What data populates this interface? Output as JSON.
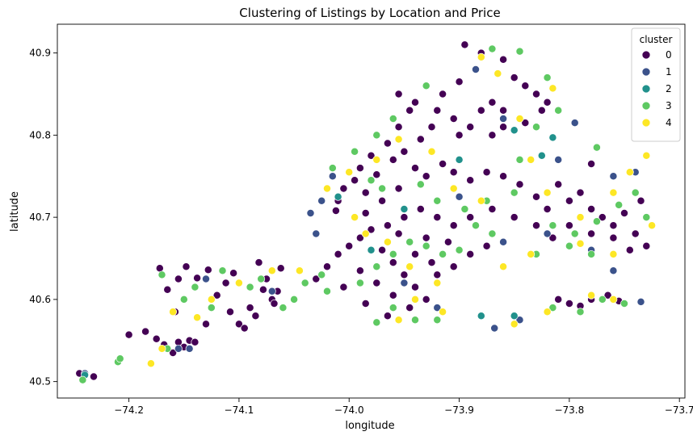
{
  "chart_data": {
    "type": "scatter",
    "title": "Clustering of Listings by Location and Price",
    "xlabel": "longitude",
    "ylabel": "latitude",
    "xlim": [
      -74.265,
      -73.695
    ],
    "ylim": [
      40.48,
      40.935
    ],
    "xticks": [
      {
        "v": -74.2,
        "label": "−74.2"
      },
      {
        "v": -74.1,
        "label": "−74.1"
      },
      {
        "v": -74.0,
        "label": "−74.0"
      },
      {
        "v": -73.9,
        "label": "−73.9"
      },
      {
        "v": -73.8,
        "label": "−73.8"
      },
      {
        "v": -73.7,
        "label": "−73.7"
      }
    ],
    "yticks": [
      {
        "v": 40.5,
        "label": "40.5"
      },
      {
        "v": 40.6,
        "label": "40.6"
      },
      {
        "v": 40.7,
        "label": "40.7"
      },
      {
        "v": 40.8,
        "label": "40.8"
      },
      {
        "v": 40.9,
        "label": "40.9"
      }
    ],
    "grid": false,
    "legend": {
      "title": "cluster",
      "placement": "top-right",
      "entries": [
        {
          "label": "0",
          "color": "#440154"
        },
        {
          "label": "1",
          "color": "#3b528b"
        },
        {
          "label": "2",
          "color": "#21918c"
        },
        {
          "label": "3",
          "color": "#5ec962"
        },
        {
          "label": "4",
          "color": "#fde725"
        }
      ]
    },
    "series": [
      {
        "name": "0",
        "color": "#440154",
        "points": [
          [
            -74.245,
            40.51
          ],
          [
            -74.232,
            40.506
          ],
          [
            -74.2,
            40.557
          ],
          [
            -74.185,
            40.561
          ],
          [
            -74.175,
            40.552
          ],
          [
            -74.168,
            40.545
          ],
          [
            -74.16,
            40.535
          ],
          [
            -74.155,
            40.548
          ],
          [
            -74.15,
            40.542
          ],
          [
            -74.145,
            40.55
          ],
          [
            -74.14,
            40.548
          ],
          [
            -74.172,
            40.638
          ],
          [
            -74.165,
            40.612
          ],
          [
            -74.158,
            40.585
          ],
          [
            -74.155,
            40.625
          ],
          [
            -74.148,
            40.64
          ],
          [
            -74.138,
            40.626
          ],
          [
            -74.128,
            40.636
          ],
          [
            -74.12,
            40.605
          ],
          [
            -74.112,
            40.62
          ],
          [
            -74.105,
            40.632
          ],
          [
            -74.1,
            40.57
          ],
          [
            -74.095,
            40.565
          ],
          [
            -74.09,
            40.59
          ],
          [
            -74.082,
            40.645
          ],
          [
            -74.078,
            40.612
          ],
          [
            -74.075,
            40.625
          ],
          [
            -74.07,
            40.6
          ],
          [
            -74.068,
            40.595
          ],
          [
            -74.065,
            40.61
          ],
          [
            -74.062,
            40.638
          ],
          [
            -74.085,
            40.58
          ],
          [
            -74.108,
            40.585
          ],
          [
            -74.13,
            40.57
          ],
          [
            -73.88,
            40.9
          ],
          [
            -73.895,
            40.91
          ],
          [
            -73.86,
            40.892
          ],
          [
            -73.85,
            40.87
          ],
          [
            -73.84,
            40.86
          ],
          [
            -73.83,
            40.85
          ],
          [
            -73.9,
            40.865
          ],
          [
            -73.915,
            40.85
          ],
          [
            -73.87,
            40.84
          ],
          [
            -73.88,
            40.83
          ],
          [
            -73.905,
            40.82
          ],
          [
            -73.925,
            40.81
          ],
          [
            -73.945,
            40.83
          ],
          [
            -73.955,
            40.81
          ],
          [
            -73.935,
            40.795
          ],
          [
            -73.965,
            40.79
          ],
          [
            -73.98,
            40.775
          ],
          [
            -73.99,
            40.76
          ],
          [
            -73.995,
            40.745
          ],
          [
            -74.005,
            40.735
          ],
          [
            -74.01,
            40.72
          ],
          [
            -74.012,
            40.708
          ],
          [
            -73.975,
            40.752
          ],
          [
            -73.985,
            40.73
          ],
          [
            -73.96,
            40.77
          ],
          [
            -73.95,
            40.78
          ],
          [
            -73.94,
            40.76
          ],
          [
            -73.93,
            40.75
          ],
          [
            -73.915,
            40.765
          ],
          [
            -73.905,
            40.755
          ],
          [
            -73.89,
            40.745
          ],
          [
            -73.875,
            40.755
          ],
          [
            -73.86,
            40.75
          ],
          [
            -73.845,
            40.74
          ],
          [
            -73.83,
            40.725
          ],
          [
            -73.82,
            40.71
          ],
          [
            -73.81,
            40.74
          ],
          [
            -73.8,
            40.72
          ],
          [
            -73.79,
            40.73
          ],
          [
            -73.78,
            40.71
          ],
          [
            -73.77,
            40.7
          ],
          [
            -73.76,
            40.69
          ],
          [
            -73.75,
            40.705
          ],
          [
            -73.74,
            40.68
          ],
          [
            -73.73,
            40.665
          ],
          [
            -73.735,
            40.72
          ],
          [
            -73.745,
            40.66
          ],
          [
            -73.76,
            40.675
          ],
          [
            -73.78,
            40.68
          ],
          [
            -73.8,
            40.69
          ],
          [
            -73.815,
            40.675
          ],
          [
            -73.83,
            40.69
          ],
          [
            -73.85,
            40.7
          ],
          [
            -73.87,
            40.71
          ],
          [
            -73.89,
            40.7
          ],
          [
            -73.905,
            40.69
          ],
          [
            -73.92,
            40.7
          ],
          [
            -73.935,
            40.71
          ],
          [
            -73.95,
            40.7
          ],
          [
            -73.965,
            40.69
          ],
          [
            -73.98,
            40.685
          ],
          [
            -73.99,
            40.675
          ],
          [
            -74.0,
            40.665
          ],
          [
            -74.01,
            40.655
          ],
          [
            -74.02,
            40.64
          ],
          [
            -74.03,
            40.625
          ],
          [
            -73.97,
            40.66
          ],
          [
            -73.96,
            40.645
          ],
          [
            -73.95,
            40.63
          ],
          [
            -73.94,
            40.615
          ],
          [
            -73.93,
            40.6
          ],
          [
            -73.945,
            40.59
          ],
          [
            -73.96,
            40.605
          ],
          [
            -73.975,
            40.62
          ],
          [
            -73.99,
            40.635
          ],
          [
            -74.005,
            40.615
          ],
          [
            -73.985,
            40.595
          ],
          [
            -73.965,
            40.58
          ],
          [
            -73.92,
            40.63
          ],
          [
            -73.905,
            40.64
          ],
          [
            -73.89,
            40.655
          ],
          [
            -73.875,
            40.665
          ],
          [
            -73.91,
            40.67
          ],
          [
            -73.93,
            40.675
          ],
          [
            -73.955,
            40.68
          ],
          [
            -73.94,
            40.655
          ],
          [
            -73.925,
            40.645
          ],
          [
            -73.985,
            40.705
          ],
          [
            -73.97,
            40.72
          ],
          [
            -73.955,
            40.735
          ],
          [
            -73.86,
            40.81
          ],
          [
            -73.84,
            40.815
          ],
          [
            -73.825,
            40.83
          ],
          [
            -73.86,
            40.83
          ],
          [
            -73.82,
            40.84
          ],
          [
            -73.81,
            40.6
          ],
          [
            -73.8,
            40.595
          ],
          [
            -73.78,
            40.6
          ],
          [
            -73.765,
            40.605
          ],
          [
            -73.755,
            40.598
          ],
          [
            -73.79,
            40.592
          ],
          [
            -73.955,
            40.85
          ],
          [
            -73.94,
            40.84
          ],
          [
            -73.92,
            40.83
          ],
          [
            -73.9,
            40.8
          ],
          [
            -73.89,
            40.81
          ],
          [
            -73.87,
            40.8
          ],
          [
            -73.78,
            40.765
          ]
        ]
      },
      {
        "name": "1",
        "color": "#3b528b",
        "points": [
          [
            -74.24,
            40.51
          ],
          [
            -74.145,
            40.54
          ],
          [
            -74.155,
            40.54
          ],
          [
            -74.13,
            40.625
          ],
          [
            -74.07,
            40.61
          ],
          [
            -73.86,
            40.82
          ],
          [
            -73.795,
            40.815
          ],
          [
            -73.81,
            40.77
          ],
          [
            -73.76,
            40.75
          ],
          [
            -73.78,
            40.66
          ],
          [
            -73.82,
            40.68
          ],
          [
            -74.015,
            40.75
          ],
          [
            -74.025,
            40.72
          ],
          [
            -74.03,
            40.68
          ],
          [
            -74.035,
            40.705
          ],
          [
            -73.92,
            40.59
          ],
          [
            -73.868,
            40.565
          ],
          [
            -73.845,
            40.575
          ],
          [
            -73.735,
            40.597
          ],
          [
            -73.9,
            40.725
          ],
          [
            -73.86,
            40.67
          ],
          [
            -73.95,
            40.62
          ],
          [
            -73.74,
            40.755
          ],
          [
            -73.885,
            40.88
          ],
          [
            -73.76,
            40.635
          ]
        ]
      },
      {
        "name": "2",
        "color": "#21918c",
        "points": [
          [
            -74.24,
            40.508
          ],
          [
            -73.85,
            40.58
          ],
          [
            -73.815,
            40.797
          ],
          [
            -73.825,
            40.775
          ],
          [
            -73.95,
            40.71
          ],
          [
            -74.01,
            40.725
          ],
          [
            -73.98,
            40.66
          ],
          [
            -73.85,
            40.806
          ],
          [
            -73.9,
            40.77
          ],
          [
            -73.88,
            40.58
          ]
        ]
      },
      {
        "name": "3",
        "color": "#5ec962",
        "points": [
          [
            -74.242,
            40.502
          ],
          [
            -74.21,
            40.524
          ],
          [
            -74.208,
            40.528
          ],
          [
            -74.17,
            40.63
          ],
          [
            -74.165,
            40.54
          ],
          [
            -74.15,
            40.6
          ],
          [
            -74.14,
            40.615
          ],
          [
            -74.125,
            40.59
          ],
          [
            -74.115,
            40.635
          ],
          [
            -74.09,
            40.615
          ],
          [
            -74.08,
            40.625
          ],
          [
            -74.06,
            40.59
          ],
          [
            -74.05,
            40.6
          ],
          [
            -74.04,
            40.62
          ],
          [
            -74.025,
            40.63
          ],
          [
            -74.02,
            40.61
          ],
          [
            -73.87,
            40.905
          ],
          [
            -73.845,
            40.902
          ],
          [
            -73.82,
            40.87
          ],
          [
            -73.81,
            40.83
          ],
          [
            -73.775,
            40.785
          ],
          [
            -73.93,
            40.86
          ],
          [
            -73.96,
            40.82
          ],
          [
            -73.975,
            40.8
          ],
          [
            -73.995,
            40.78
          ],
          [
            -74.015,
            40.76
          ],
          [
            -73.98,
            40.745
          ],
          [
            -73.97,
            40.735
          ],
          [
            -73.935,
            40.74
          ],
          [
            -73.92,
            40.72
          ],
          [
            -73.895,
            40.71
          ],
          [
            -73.875,
            40.72
          ],
          [
            -73.85,
            40.73
          ],
          [
            -73.815,
            40.69
          ],
          [
            -73.795,
            40.68
          ],
          [
            -73.775,
            40.695
          ],
          [
            -73.755,
            40.715
          ],
          [
            -73.74,
            40.73
          ],
          [
            -73.73,
            40.7
          ],
          [
            -73.78,
            40.655
          ],
          [
            -73.8,
            40.665
          ],
          [
            -73.83,
            40.655
          ],
          [
            -73.87,
            40.68
          ],
          [
            -73.885,
            40.69
          ],
          [
            -73.9,
            40.66
          ],
          [
            -73.915,
            40.655
          ],
          [
            -73.93,
            40.665
          ],
          [
            -73.945,
            40.67
          ],
          [
            -73.96,
            40.655
          ],
          [
            -73.975,
            40.64
          ],
          [
            -73.99,
            40.62
          ],
          [
            -73.96,
            40.59
          ],
          [
            -73.94,
            40.575
          ],
          [
            -73.975,
            40.572
          ],
          [
            -73.92,
            40.575
          ],
          [
            -73.815,
            40.59
          ],
          [
            -73.79,
            40.585
          ],
          [
            -73.77,
            40.6
          ],
          [
            -73.75,
            40.595
          ],
          [
            -73.845,
            40.77
          ],
          [
            -73.83,
            40.81
          ]
        ]
      },
      {
        "name": "4",
        "color": "#fde725",
        "points": [
          [
            -74.18,
            40.522
          ],
          [
            -74.17,
            40.54
          ],
          [
            -74.16,
            40.585
          ],
          [
            -74.138,
            40.578
          ],
          [
            -74.125,
            40.6
          ],
          [
            -74.1,
            40.62
          ],
          [
            -74.07,
            40.635
          ],
          [
            -74.045,
            40.635
          ],
          [
            -73.88,
            40.895
          ],
          [
            -73.865,
            40.875
          ],
          [
            -73.815,
            40.857
          ],
          [
            -73.845,
            40.82
          ],
          [
            -73.835,
            40.77
          ],
          [
            -73.82,
            40.73
          ],
          [
            -73.79,
            40.7
          ],
          [
            -73.76,
            40.73
          ],
          [
            -73.745,
            40.755
          ],
          [
            -73.73,
            40.775
          ],
          [
            -73.725,
            40.69
          ],
          [
            -73.76,
            40.655
          ],
          [
            -73.79,
            40.668
          ],
          [
            -73.835,
            40.655
          ],
          [
            -73.86,
            40.64
          ],
          [
            -73.88,
            40.72
          ],
          [
            -73.905,
            40.735
          ],
          [
            -73.925,
            40.78
          ],
          [
            -73.955,
            40.795
          ],
          [
            -73.975,
            40.77
          ],
          [
            -74.0,
            40.755
          ],
          [
            -74.02,
            40.735
          ],
          [
            -73.995,
            40.7
          ],
          [
            -73.985,
            40.68
          ],
          [
            -73.965,
            40.67
          ],
          [
            -73.945,
            40.64
          ],
          [
            -73.92,
            40.62
          ],
          [
            -73.94,
            40.6
          ],
          [
            -73.955,
            40.575
          ],
          [
            -73.915,
            40.585
          ],
          [
            -73.82,
            40.585
          ],
          [
            -73.85,
            40.57
          ],
          [
            -73.78,
            40.605
          ],
          [
            -73.76,
            40.6
          ]
        ]
      }
    ]
  }
}
